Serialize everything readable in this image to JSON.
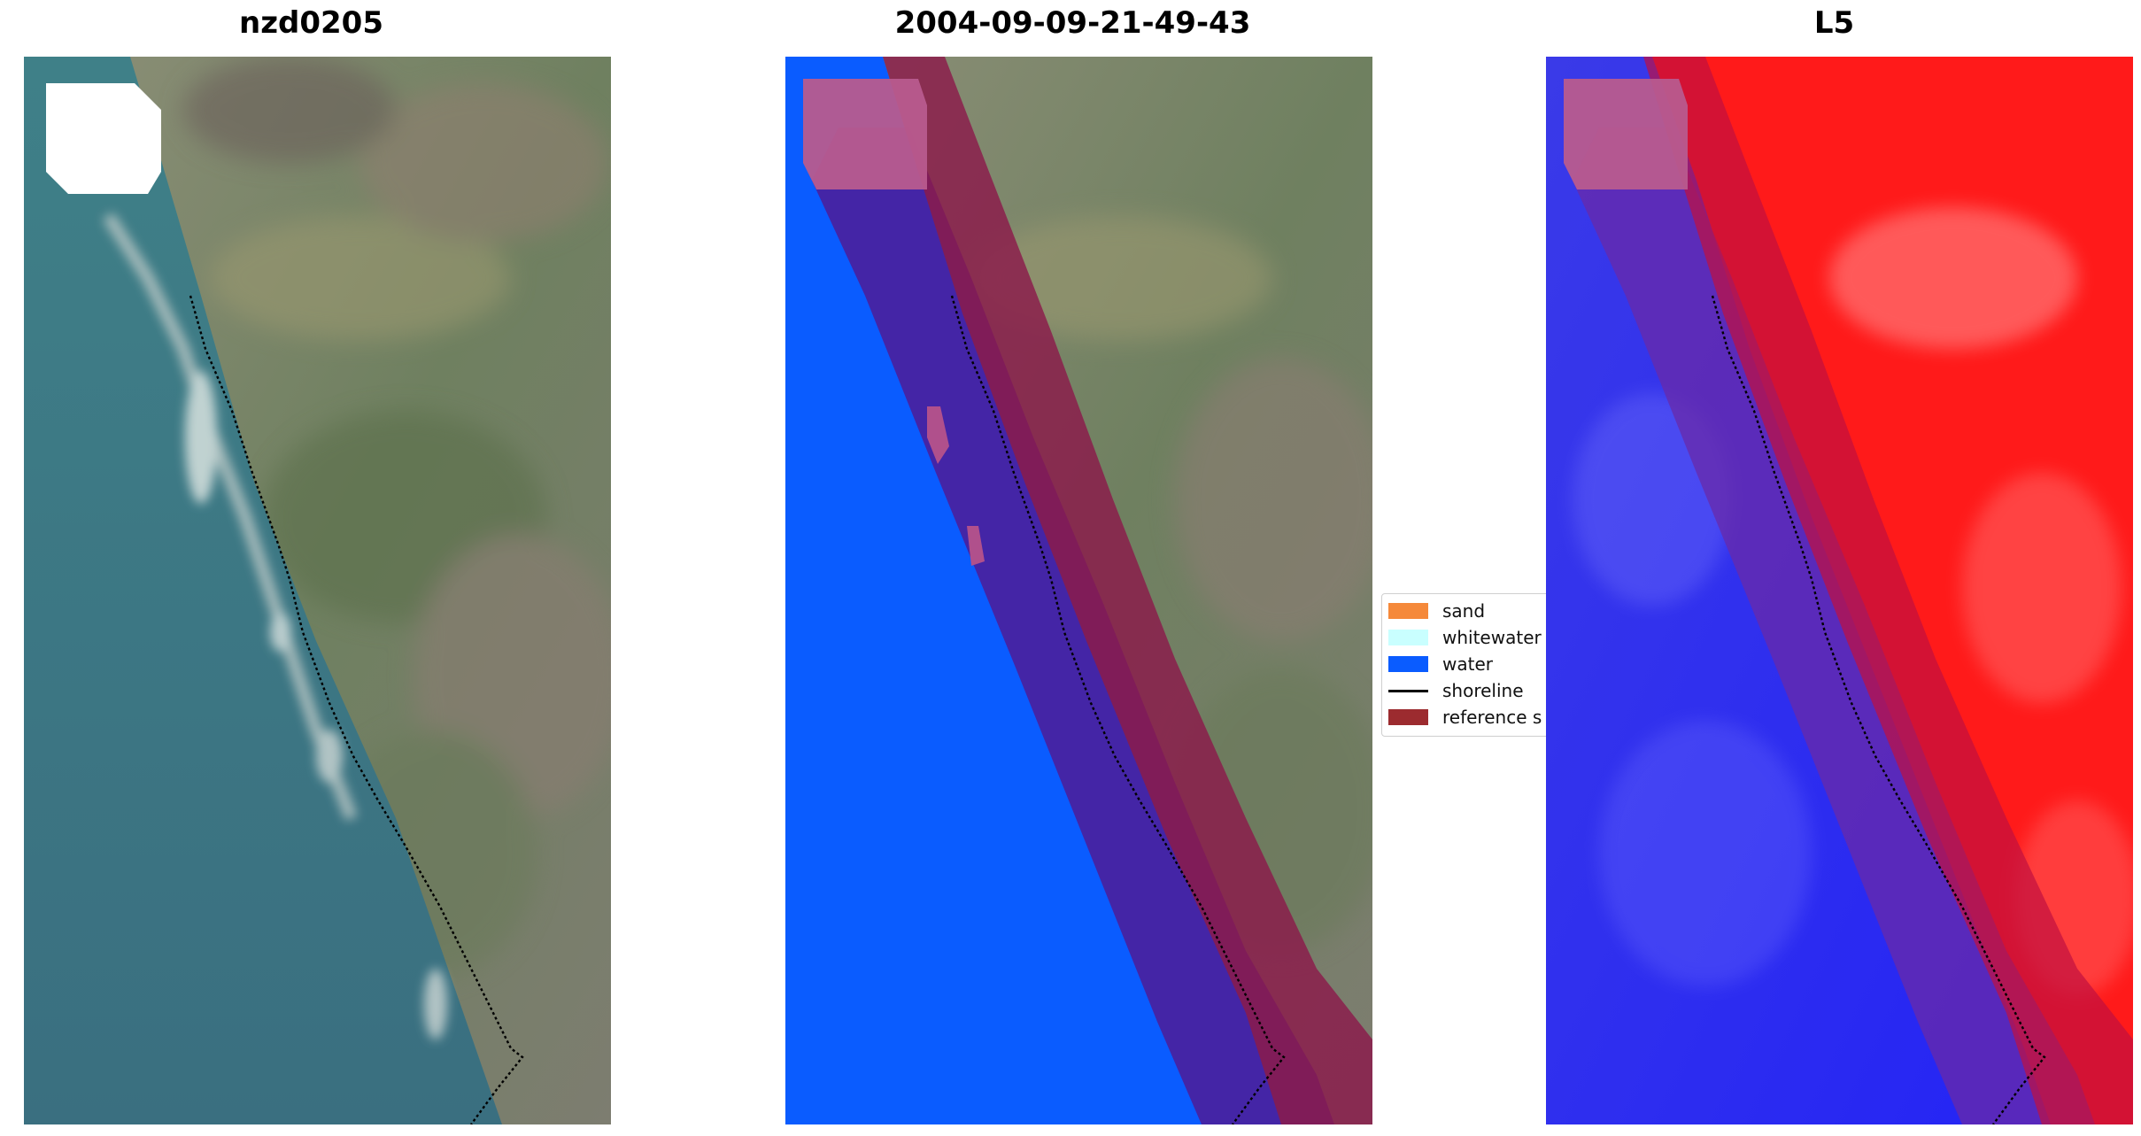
{
  "panels": {
    "rgb_title": "nzd0205",
    "classified_title": "2004-09-09-21-49-43",
    "index_title": "L5"
  },
  "legend": {
    "items": [
      {
        "label": "sand",
        "color": "#f5893a",
        "kind": "patch"
      },
      {
        "label": "whitewater",
        "color": "#c9ffff",
        "kind": "patch"
      },
      {
        "label": "water",
        "color": "#0a5cff",
        "kind": "patch"
      },
      {
        "label": "shoreline",
        "color": "#000000",
        "kind": "line"
      },
      {
        "label": "reference s",
        "color": "#9c2b2f",
        "kind": "patch"
      }
    ]
  },
  "colors": {
    "ocean": "#3c7a85",
    "land": "#7a8a6e",
    "water_class": "#0a5cff",
    "buffer_overlay": "#8b1a3a",
    "index_positive": "#ff1a1a",
    "index_negative": "#2f2fff"
  }
}
